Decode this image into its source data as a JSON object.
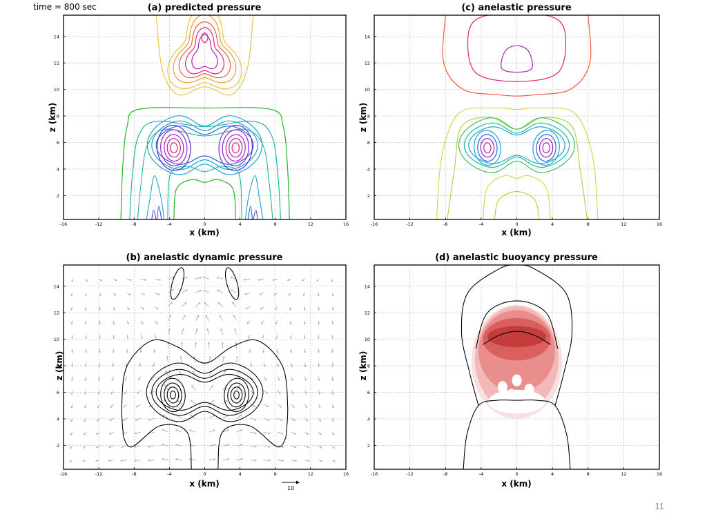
{
  "header": {
    "time_label": "time = 800 sec"
  },
  "slide": {
    "number": "11"
  },
  "colors": {
    "frame": "#000000",
    "grid": "#9a9a9a",
    "vector": "#a8a8a8",
    "shade": [
      "#f9dede",
      "#f2b5b5",
      "#e98a8a",
      "#d95d5d",
      "#c43a3a"
    ]
  },
  "chart_data": [
    {
      "id": "a",
      "type": "contour",
      "title": "(a)  predicted pressure",
      "xlabel": "x (km)",
      "ylabel": "z (km)",
      "xlim": [
        -16,
        16
      ],
      "ylim": [
        0.2,
        15.6
      ],
      "xticks": [
        "-16",
        "-12",
        "-8",
        "-4",
        "0",
        "4",
        "8",
        "12",
        "16"
      ],
      "yticks": [
        "2",
        "4",
        "6",
        "8",
        "10",
        "12",
        "14"
      ],
      "grid": true,
      "contour_colors": [
        "#21b521",
        "#19b8a2",
        "#19a4cf",
        "#2460e0",
        "#5a2ee0",
        "#8c1fcf",
        "#b21fb8",
        "#e0206e",
        "#ef5a3a",
        "#f29a35",
        "#e9c23a"
      ],
      "field": {
        "vortex_centers": [
          [
            -3.5,
            5.6
          ],
          [
            3.5,
            5.6
          ]
        ],
        "top_center": [
          0,
          13.8
        ],
        "core_stagger": 1
      }
    },
    {
      "id": "c",
      "type": "contour",
      "title": "(c)  anelastic pressure",
      "xlabel": "x (km)",
      "ylabel": "z (km)",
      "xlim": [
        -16,
        16
      ],
      "ylim": [
        0.2,
        15.6
      ],
      "xticks": [
        "-16",
        "-12",
        "-8",
        "-4",
        "0",
        "4",
        "8",
        "12",
        "16"
      ],
      "yticks": [
        "2",
        "4",
        "6",
        "8",
        "10",
        "12",
        "14"
      ],
      "grid": true,
      "contour_colors": [
        "#d9d23a",
        "#a9d23a",
        "#3ec15a",
        "#19b8a2",
        "#19a4cf",
        "#2460e0",
        "#8c1fcf",
        "#b21fb8",
        "#e0206e",
        "#ef5a3a"
      ],
      "field": {
        "vortex_centers": [
          [
            -3.3,
            5.6
          ],
          [
            3.3,
            5.6
          ]
        ],
        "top_center": [
          0,
          12.2
        ]
      }
    },
    {
      "id": "b",
      "type": "contour",
      "title": "(b)  anelastic dynamic pressure",
      "xlabel": "x (km)",
      "ylabel": "z (km)",
      "xlim": [
        -16,
        16
      ],
      "ylim": [
        0.2,
        15.6
      ],
      "xticks": [
        "-16",
        "-12",
        "-8",
        "-4",
        "0",
        "4",
        "8",
        "12",
        "16"
      ],
      "yticks": [
        "2",
        "4",
        "6",
        "8",
        "10",
        "12",
        "14"
      ],
      "grid": true,
      "vector_reference": {
        "label": "10",
        "value": 10
      },
      "field": {
        "vortex_centers": [
          [
            -3.6,
            5.8
          ],
          [
            3.6,
            5.8
          ]
        ],
        "upper_lobes": [
          [
            -3.1,
            14.2
          ],
          [
            3.1,
            14.2
          ]
        ]
      }
    },
    {
      "id": "d",
      "type": "contour",
      "title": "(d)  anelastic buoyancy pressure",
      "xlabel": "x (km)",
      "ylabel": "z (km)",
      "xlim": [
        -16,
        16
      ],
      "ylim": [
        0.2,
        15.6
      ],
      "xticks": [
        "-16",
        "-12",
        "-8",
        "-4",
        "0",
        "4",
        "8",
        "12",
        "16"
      ],
      "yticks": [
        "2",
        "4",
        "6",
        "8",
        "10",
        "12",
        "14"
      ],
      "grid": true,
      "field": {
        "shaded_region_center": [
          0,
          8.6
        ],
        "contour_levels_shown": 3
      }
    }
  ]
}
